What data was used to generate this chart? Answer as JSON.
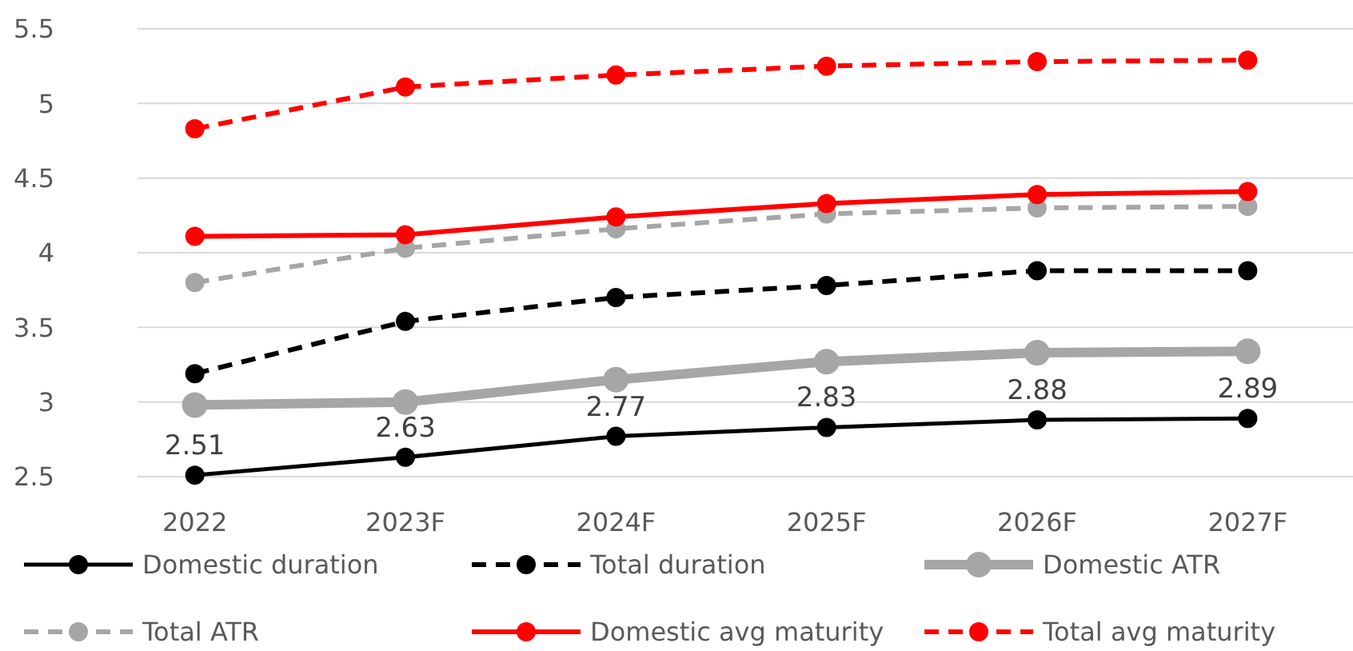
{
  "chart_data": {
    "type": "line",
    "categories": [
      "2022",
      "2023F",
      "2024F",
      "2025F",
      "2026F",
      "2027F"
    ],
    "series": [
      {
        "name": "Domestic duration",
        "color": "#000000",
        "line_style": "solid",
        "values": [
          2.51,
          2.63,
          2.77,
          2.83,
          2.88,
          2.89
        ],
        "value_labels": [
          "2.51",
          "2.63",
          "2.77",
          "2.83",
          "2.88",
          "2.89"
        ]
      },
      {
        "name": "Total duration",
        "color": "#000000",
        "line_style": "dashed",
        "values": [
          3.19,
          3.54,
          3.7,
          3.78,
          3.88,
          3.88
        ]
      },
      {
        "name": "Domestic ATR",
        "color": "#a6a6a6",
        "line_style": "solid",
        "values": [
          2.98,
          3.0,
          3.15,
          3.27,
          3.33,
          3.34
        ]
      },
      {
        "name": "Total ATR",
        "color": "#a6a6a6",
        "line_style": "dashed",
        "values": [
          3.8,
          4.03,
          4.16,
          4.26,
          4.3,
          4.31
        ]
      },
      {
        "name": "Domestic avg maturity",
        "color": "#ff0000",
        "line_style": "solid",
        "values": [
          4.11,
          4.12,
          4.24,
          4.33,
          4.39,
          4.41
        ]
      },
      {
        "name": "Total avg maturity",
        "color": "#ff0000",
        "line_style": "dashed",
        "values": [
          4.83,
          5.11,
          5.19,
          5.25,
          5.28,
          5.29
        ]
      }
    ],
    "ylim": [
      2.5,
      5.5
    ],
    "yticks": [
      2.5,
      3,
      3.5,
      4,
      4.5,
      5,
      5.5
    ],
    "grid": "y",
    "legend": "bottom",
    "marker": "circle"
  }
}
